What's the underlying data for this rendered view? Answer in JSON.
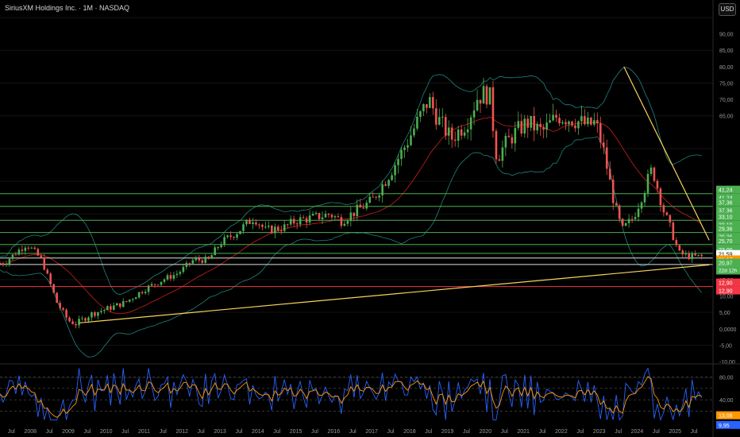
{
  "header": {
    "title": "SiriusXM Holdings Inc. · 1M · NASDAQ",
    "currency_button": "USD"
  },
  "colors": {
    "up": "#26a69a",
    "up_bright": "#4caf50",
    "down": "#ef5350",
    "hline_green": "#4caf50",
    "hline_white": "#e0e0e0",
    "hline_red": "#f23645",
    "trendline": "#f7d359",
    "bb": "#26a69a",
    "ma": "#b71c1c",
    "rsi_blue": "#2962ff",
    "rsi_orange": "#ff9800",
    "grid": "#141414"
  },
  "chart_data": {
    "type": "candlestick",
    "ylim": [
      -10,
      95
    ],
    "price_axis_ticks": [
      "90,00",
      "85,00",
      "80,00",
      "75,00",
      "70,00",
      "65,00",
      "15,00",
      "10,00",
      "5,00",
      "0,0000",
      "-5,00",
      "-10,00"
    ],
    "time_axis_labels": [
      {
        "label": "Jul",
        "x": 2007.5
      },
      {
        "label": "2008",
        "x": 2008
      },
      {
        "label": "Jul",
        "x": 2008.5
      },
      {
        "label": "2009",
        "x": 2009
      },
      {
        "label": "Jul",
        "x": 2009.5
      },
      {
        "label": "2010",
        "x": 2010
      },
      {
        "label": "Jul",
        "x": 2010.5
      },
      {
        "label": "2011",
        "x": 2011
      },
      {
        "label": "Jul",
        "x": 2011.5
      },
      {
        "label": "2012",
        "x": 2012
      },
      {
        "label": "Jul",
        "x": 2012.5
      },
      {
        "label": "2013",
        "x": 2013
      },
      {
        "label": "Jul",
        "x": 2013.5
      },
      {
        "label": "2014",
        "x": 2014
      },
      {
        "label": "Jul",
        "x": 2014.5
      },
      {
        "label": "2015",
        "x": 2015
      },
      {
        "label": "Jul",
        "x": 2015.5
      },
      {
        "label": "2016",
        "x": 2016
      },
      {
        "label": "Jul",
        "x": 2016.5
      },
      {
        "label": "2017",
        "x": 2017
      },
      {
        "label": "Jul",
        "x": 2017.5
      },
      {
        "label": "2018",
        "x": 2018
      },
      {
        "label": "Jul",
        "x": 2018.5
      },
      {
        "label": "2019",
        "x": 2019
      },
      {
        "label": "Jul",
        "x": 2019.5
      },
      {
        "label": "2020",
        "x": 2020
      },
      {
        "label": "Jul",
        "x": 2020.5
      },
      {
        "label": "2021",
        "x": 2021
      },
      {
        "label": "Jul",
        "x": 2021.5
      },
      {
        "label": "2022",
        "x": 2022
      },
      {
        "label": "Jul",
        "x": 2022.5
      },
      {
        "label": "2023",
        "x": 2023
      },
      {
        "label": "Jul",
        "x": 2023.5
      },
      {
        "label": "2024",
        "x": 2024
      },
      {
        "label": "Jul",
        "x": 2024.5
      },
      {
        "label": "2025",
        "x": 2025
      },
      {
        "label": "Jul",
        "x": 2025.5
      }
    ],
    "price_path": [
      [
        2007.3,
        20
      ],
      [
        2007.9,
        26
      ],
      [
        2008.3,
        21
      ],
      [
        2008.7,
        8
      ],
      [
        2009.0,
        2.5
      ],
      [
        2009.2,
        1.5
      ],
      [
        2009.6,
        4.5
      ],
      [
        2010.0,
        6
      ],
      [
        2010.5,
        8
      ],
      [
        2011.0,
        12
      ],
      [
        2011.5,
        15
      ],
      [
        2011.9,
        17
      ],
      [
        2012.3,
        21
      ],
      [
        2012.7,
        21
      ],
      [
        2013.0,
        26
      ],
      [
        2013.5,
        30
      ],
      [
        2013.9,
        34
      ],
      [
        2014.2,
        30
      ],
      [
        2014.7,
        31
      ],
      [
        2015.0,
        33
      ],
      [
        2015.5,
        34
      ],
      [
        2015.9,
        35
      ],
      [
        2016.2,
        33
      ],
      [
        2016.6,
        36
      ],
      [
        2017.0,
        39
      ],
      [
        2017.4,
        46
      ],
      [
        2017.8,
        54
      ],
      [
        2018.2,
        63
      ],
      [
        2018.5,
        70
      ],
      [
        2018.8,
        63
      ],
      [
        2019.1,
        58
      ],
      [
        2019.5,
        63
      ],
      [
        2019.8,
        71
      ],
      [
        2020.1,
        72
      ],
      [
        2020.3,
        52
      ],
      [
        2020.5,
        56
      ],
      [
        2020.8,
        60
      ],
      [
        2021.1,
        63
      ],
      [
        2021.5,
        60
      ],
      [
        2021.9,
        65
      ],
      [
        2022.3,
        64
      ],
      [
        2022.7,
        62
      ],
      [
        2022.9,
        63
      ],
      [
        2023.1,
        55
      ],
      [
        2023.4,
        38
      ],
      [
        2023.6,
        30
      ],
      [
        2023.9,
        34
      ],
      [
        2024.2,
        43
      ],
      [
        2024.4,
        49
      ],
      [
        2024.7,
        36
      ],
      [
        2024.9,
        30
      ],
      [
        2025.1,
        23
      ],
      [
        2025.4,
        22
      ],
      [
        2025.7,
        22
      ]
    ],
    "horizontal_lines": [
      {
        "value": 41.24,
        "color": "green",
        "label": "41,24"
      },
      {
        "value": 37.36,
        "color": "green",
        "label": "37,36"
      },
      {
        "value": 33.1,
        "color": "green",
        "label": "33,10"
      },
      {
        "value": 29.36,
        "color": "green",
        "label": "29,36"
      },
      {
        "value": 25.7,
        "color": "green",
        "label": "25,70"
      },
      {
        "value": 23.0,
        "color": "green",
        "label": "23,00"
      },
      {
        "value": 21.59,
        "color": "white",
        "label": "21,59"
      },
      {
        "value": 12.9,
        "color": "red",
        "label": "12,90"
      }
    ],
    "trendlines": [
      {
        "from": [
          2009.3,
          1.8
        ],
        "to": [
          2025.9,
          19.5
        ]
      },
      {
        "from": [
          2023.65,
          80
        ],
        "to": [
          2025.9,
          27
        ]
      }
    ],
    "current_price_label": "20,97",
    "countdown_label": "22d 12h",
    "side_price_label": "21,17",
    "rsi": {
      "ticks": [
        "80,00",
        "40,00"
      ],
      "last_orange": "13,08",
      "last_blue": "9,95"
    }
  }
}
